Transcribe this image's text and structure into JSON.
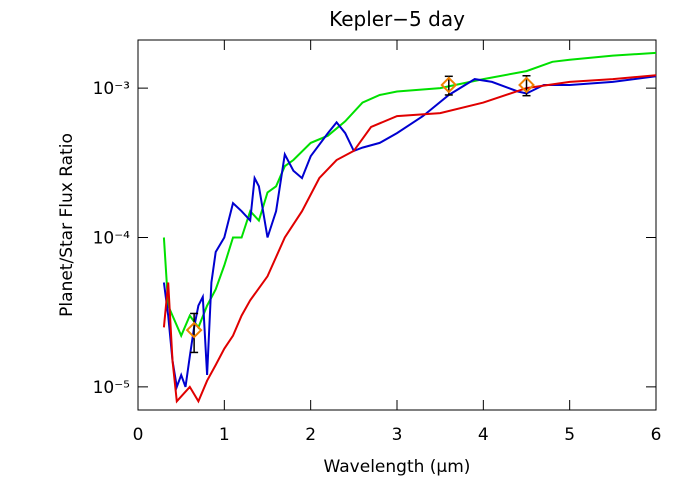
{
  "chart_data": {
    "type": "line",
    "title": "Kepler−5 day",
    "x_label": "Wavelength (μm)",
    "y_label": "Planet/Star Flux Ratio",
    "y_log": true,
    "xlim": [
      0,
      6
    ],
    "ylim": [
      7e-06,
      0.0021
    ],
    "xticks": [
      0,
      1,
      2,
      3,
      4,
      5,
      6
    ],
    "yticks": [
      {
        "value": 1e-05,
        "label": "10⁻⁵"
      },
      {
        "value": 0.0001,
        "label": "10⁻⁴"
      },
      {
        "value": 0.001,
        "label": "10⁻³"
      }
    ],
    "series": [
      {
        "color": "#00e000",
        "x": [
          0.3,
          0.35,
          0.4,
          0.5,
          0.6,
          0.7,
          0.8,
          0.9,
          1.0,
          1.1,
          1.2,
          1.3,
          1.4,
          1.5,
          1.6,
          1.7,
          1.8,
          2.0,
          2.2,
          2.4,
          2.6,
          2.8,
          3.0,
          3.5,
          4.0,
          4.5,
          4.8,
          5.0,
          5.5,
          6.0
        ],
        "values": [
          0.0001,
          3.5e-05,
          3e-05,
          2.2e-05,
          3e-05,
          2.5e-05,
          3.5e-05,
          4.5e-05,
          6.5e-05,
          0.0001,
          0.0001,
          0.00015,
          0.00013,
          0.0002,
          0.00022,
          0.0003,
          0.00033,
          0.00043,
          0.00048,
          0.0006,
          0.0008,
          0.0009,
          0.00095,
          0.001,
          0.00115,
          0.0013,
          0.0015,
          0.00155,
          0.00165,
          0.00172
        ]
      },
      {
        "color": "#0000d0",
        "x": [
          0.3,
          0.35,
          0.4,
          0.45,
          0.5,
          0.55,
          0.6,
          0.65,
          0.7,
          0.75,
          0.8,
          0.85,
          0.9,
          1.0,
          1.1,
          1.2,
          1.3,
          1.35,
          1.4,
          1.5,
          1.6,
          1.7,
          1.8,
          1.9,
          2.0,
          2.2,
          2.3,
          2.4,
          2.5,
          2.6,
          2.8,
          3.0,
          3.3,
          3.6,
          3.9,
          4.1,
          4.4,
          4.5,
          4.7,
          5.0,
          5.5,
          6.0
        ],
        "values": [
          5e-05,
          3e-05,
          1.5e-05,
          1e-05,
          1.2e-05,
          1e-05,
          1.6e-05,
          2.5e-05,
          3.5e-05,
          4e-05,
          1.2e-05,
          5e-05,
          8e-05,
          0.0001,
          0.00017,
          0.00015,
          0.00013,
          0.00025,
          0.00022,
          0.0001,
          0.00015,
          0.00036,
          0.00028,
          0.00025,
          0.00035,
          0.0005,
          0.00059,
          0.0005,
          0.00038,
          0.0004,
          0.00043,
          0.0005,
          0.00065,
          0.0009,
          0.00115,
          0.0011,
          0.00095,
          0.00092,
          0.00105,
          0.00105,
          0.0011,
          0.0012
        ]
      },
      {
        "color": "#e00000",
        "x": [
          0.3,
          0.35,
          0.4,
          0.45,
          0.6,
          0.7,
          0.8,
          0.9,
          1.0,
          1.1,
          1.2,
          1.3,
          1.5,
          1.7,
          1.9,
          2.1,
          2.3,
          2.5,
          2.7,
          3.0,
          3.5,
          4.0,
          4.5,
          5.0,
          5.5,
          6.0
        ],
        "values": [
          2.5e-05,
          5e-05,
          1.5e-05,
          8e-06,
          1e-05,
          8e-06,
          1.1e-05,
          1.4e-05,
          1.8e-05,
          2.2e-05,
          3e-05,
          3.8e-05,
          5.5e-05,
          0.0001,
          0.00015,
          0.00025,
          0.00033,
          0.00038,
          0.00055,
          0.00065,
          0.00068,
          0.0008,
          0.001,
          0.0011,
          0.00115,
          0.00122
        ]
      }
    ],
    "points": {
      "color": "#f08000",
      "x": [
        0.65,
        3.6,
        4.5
      ],
      "values": [
        2.4e-05,
        0.00105,
        0.00105
      ],
      "errors": [
        7e-06,
        0.00015,
        0.00016
      ]
    }
  }
}
